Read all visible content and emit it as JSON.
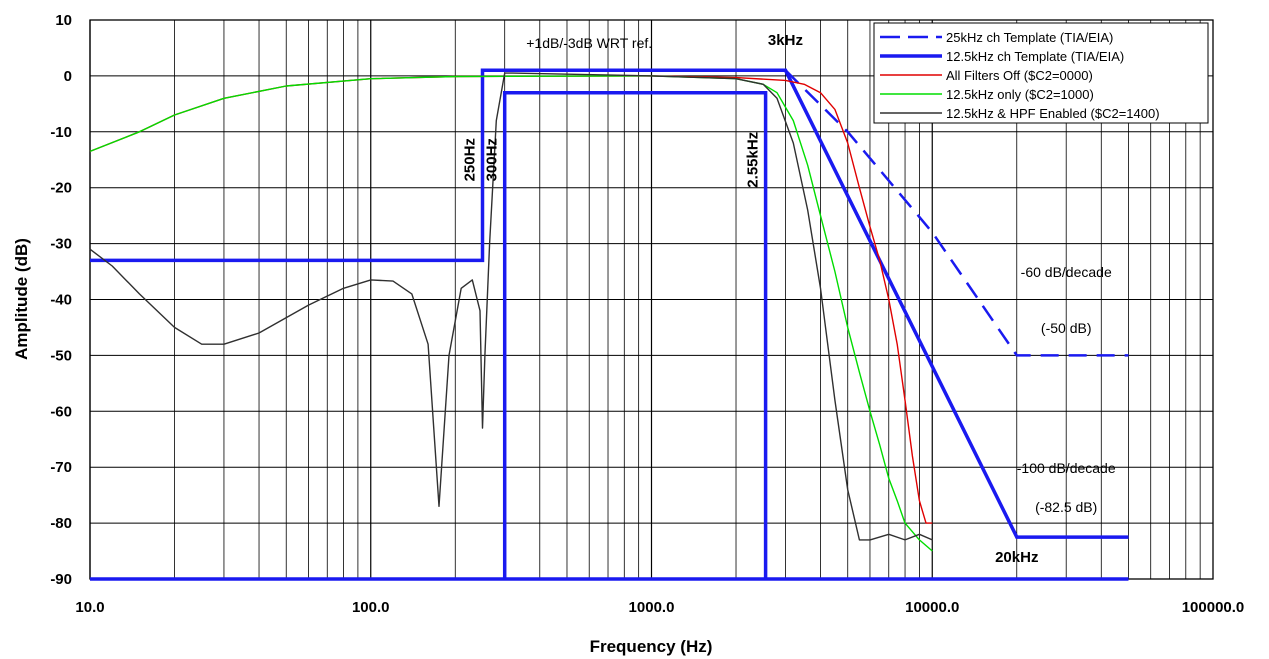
{
  "chart_data": {
    "type": "line",
    "xlabel": "Frequency (Hz)",
    "ylabel": "Amplitude (dB)",
    "x_scale": "log",
    "xlim": [
      10,
      100000
    ],
    "ylim": [
      -90,
      10
    ],
    "grid": true,
    "x_ticks": [
      "10.0",
      "100.0",
      "1000.0",
      "10000.0",
      "100000.0"
    ],
    "y_ticks": [
      "10",
      "0",
      "-10",
      "-20",
      "-30",
      "-40",
      "-50",
      "-60",
      "-70",
      "-80",
      "-90"
    ],
    "legend_position": "top-right",
    "series": [
      {
        "name": "25kHz ch Template (TIA/EIA)",
        "color": "#1a1af0",
        "style": "dashed",
        "points": [
          [
            3000,
            1
          ],
          [
            5000,
            -10
          ],
          [
            10000,
            -28
          ],
          [
            20000,
            -50
          ],
          [
            50000,
            -50
          ]
        ]
      },
      {
        "name": "12.5kHz ch Template (TIA/EIA)",
        "color": "#1a1af0",
        "style": "thick",
        "paths": [
          [
            [
              10,
              -33
            ],
            [
              250,
              -33
            ],
            [
              250,
              1
            ],
            [
              3000,
              1
            ],
            [
              20000,
              -82.5
            ],
            [
              50000,
              -82.5
            ]
          ],
          [
            [
              300,
              -90
            ],
            [
              300,
              -3
            ],
            [
              2550,
              -3
            ],
            [
              2550,
              -90
            ]
          ],
          [
            [
              10,
              -90
            ],
            [
              50000,
              -90
            ]
          ]
        ]
      },
      {
        "name": "All Filters Off ($C2=0000)",
        "color": "#e00000",
        "style": "solid",
        "points": [
          [
            10,
            -13.5
          ],
          [
            15,
            -10
          ],
          [
            20,
            -7
          ],
          [
            30,
            -4
          ],
          [
            50,
            -1.8
          ],
          [
            100,
            -0.5
          ],
          [
            200,
            -0.1
          ],
          [
            1000,
            0
          ],
          [
            2000,
            -0.3
          ],
          [
            3000,
            -0.8
          ],
          [
            3500,
            -1.5
          ],
          [
            4000,
            -3
          ],
          [
            4500,
            -6
          ],
          [
            5000,
            -12
          ],
          [
            5500,
            -20
          ],
          [
            6000,
            -27
          ],
          [
            6500,
            -33
          ],
          [
            7000,
            -40
          ],
          [
            7500,
            -48
          ],
          [
            8000,
            -58
          ],
          [
            8500,
            -68
          ],
          [
            9000,
            -76
          ],
          [
            9500,
            -80
          ],
          [
            10000,
            -80
          ]
        ]
      },
      {
        "name": "12.5kHz only ($C2=1000)",
        "color": "#00dd00",
        "style": "solid",
        "points": [
          [
            10,
            -13.5
          ],
          [
            15,
            -10
          ],
          [
            20,
            -7
          ],
          [
            30,
            -4
          ],
          [
            50,
            -1.8
          ],
          [
            100,
            -0.5
          ],
          [
            200,
            -0.1
          ],
          [
            1000,
            0
          ],
          [
            2000,
            -0.5
          ],
          [
            2500,
            -1.5
          ],
          [
            2800,
            -3
          ],
          [
            3200,
            -8
          ],
          [
            3600,
            -16
          ],
          [
            4000,
            -25
          ],
          [
            4500,
            -35
          ],
          [
            5000,
            -45
          ],
          [
            5500,
            -53
          ],
          [
            6000,
            -60
          ],
          [
            6500,
            -66
          ],
          [
            7000,
            -72
          ],
          [
            7500,
            -76
          ],
          [
            8000,
            -80
          ],
          [
            9000,
            -83
          ],
          [
            10000,
            -85
          ]
        ]
      },
      {
        "name": "12.5kHz & HPF Enabled ($C2=1400)",
        "color": "#303030",
        "style": "solid",
        "points": [
          [
            10,
            -31
          ],
          [
            12,
            -34
          ],
          [
            15,
            -39
          ],
          [
            20,
            -45
          ],
          [
            25,
            -48
          ],
          [
            30,
            -48
          ],
          [
            40,
            -46
          ],
          [
            60,
            -41
          ],
          [
            80,
            -38
          ],
          [
            100,
            -36.5
          ],
          [
            120,
            -36.7
          ],
          [
            140,
            -39
          ],
          [
            160,
            -48
          ],
          [
            175,
            -77
          ],
          [
            190,
            -50
          ],
          [
            210,
            -38
          ],
          [
            230,
            -36.5
          ],
          [
            245,
            -42
          ],
          [
            250,
            -63
          ],
          [
            255,
            -50
          ],
          [
            265,
            -30
          ],
          [
            280,
            -8
          ],
          [
            300,
            0.5
          ],
          [
            320,
            0.5
          ],
          [
            1000,
            0
          ],
          [
            2000,
            -0.5
          ],
          [
            2500,
            -1.5
          ],
          [
            2800,
            -4
          ],
          [
            3200,
            -12
          ],
          [
            3600,
            -24
          ],
          [
            4000,
            -38
          ],
          [
            4500,
            -58
          ],
          [
            5000,
            -74
          ],
          [
            5500,
            -83
          ],
          [
            6000,
            -83
          ],
          [
            7000,
            -82
          ],
          [
            8000,
            -83
          ],
          [
            9000,
            -82
          ],
          [
            10000,
            -83
          ]
        ]
      }
    ],
    "annotations": [
      {
        "text": "+1dB/-3dB WRT ref.",
        "x": 600,
        "y": 5
      },
      {
        "text": "3kHz",
        "x": 3000,
        "y": 5.5
      },
      {
        "text": "250Hz",
        "x": 250,
        "y": -15,
        "rotated": true
      },
      {
        "text": "300Hz",
        "x": 300,
        "y": -15,
        "rotated": true
      },
      {
        "text": "2.55kHz",
        "x": 2550,
        "y": -15,
        "rotated": true
      },
      {
        "text": "-60 dB/decade",
        "x": 30000,
        "y": -36
      },
      {
        "text": "(-50 dB)",
        "x": 30000,
        "y": -46
      },
      {
        "text": "-100 dB/decade",
        "x": 30000,
        "y": -71
      },
      {
        "text": "(-82.5 dB)",
        "x": 30000,
        "y": -78
      },
      {
        "text": "20kHz",
        "x": 20000,
        "y": -87
      }
    ]
  }
}
